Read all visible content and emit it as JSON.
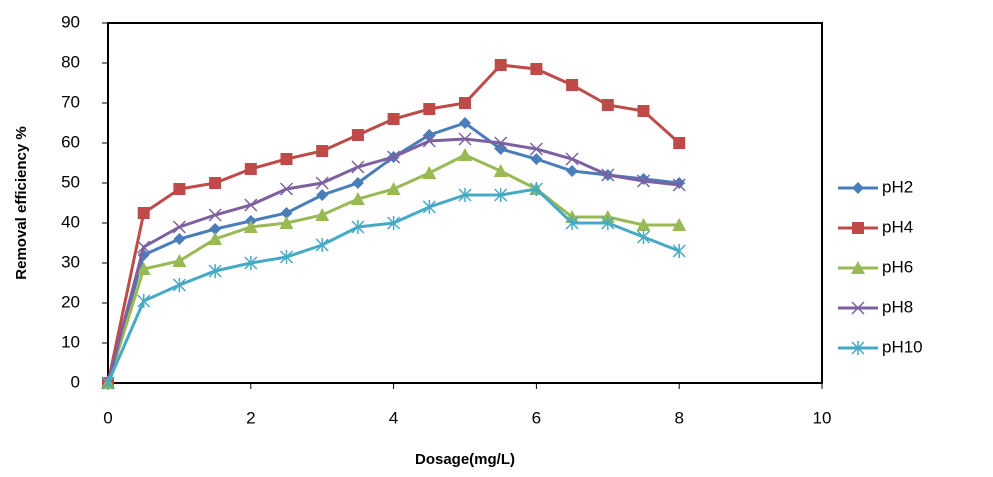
{
  "chart_data": {
    "type": "line",
    "x_label": "Dosage(mg/L)",
    "y_label": "Removal efficiency %",
    "x": [
      0,
      0.5,
      1,
      1.5,
      2,
      2.5,
      3,
      3.5,
      4,
      4.5,
      5,
      5.5,
      6,
      6.5,
      7,
      7.5,
      8
    ],
    "series": [
      {
        "name": "pH2",
        "color": "#4a7ebb",
        "marker": "diamond",
        "values": [
          0,
          32,
          36,
          38.5,
          40.5,
          42.5,
          47,
          50,
          56.5,
          62,
          65,
          58.5,
          56,
          53,
          52,
          51,
          50
        ]
      },
      {
        "name": "pH4",
        "color": "#be4b48",
        "marker": "square",
        "values": [
          0,
          42.5,
          48.5,
          50,
          53.5,
          56,
          58,
          62,
          66,
          68.5,
          70,
          79.5,
          78.5,
          74.5,
          69.5,
          68,
          60
        ]
      },
      {
        "name": "pH6",
        "color": "#98b954",
        "marker": "triangle",
        "values": [
          0,
          28.5,
          30.5,
          36,
          39,
          40,
          42,
          46,
          48.5,
          52.5,
          57,
          53,
          48.5,
          41.5,
          41.5,
          39.5,
          39.5
        ]
      },
      {
        "name": "pH8",
        "color": "#7d60a0",
        "marker": "x",
        "values": [
          0,
          34,
          39,
          42,
          44.5,
          48.5,
          50,
          54,
          56.5,
          60.5,
          61,
          60,
          58.5,
          56,
          52,
          50.5,
          49.5
        ]
      },
      {
        "name": "pH10",
        "color": "#46aac5",
        "marker": "star",
        "values": [
          0,
          20.5,
          24.5,
          28,
          30,
          31.5,
          34.5,
          39,
          40,
          44,
          47,
          47,
          48.5,
          40,
          40,
          36.5,
          33
        ]
      }
    ],
    "xlim": [
      0,
      10
    ],
    "xticks": [
      0,
      2,
      4,
      6,
      8,
      10
    ],
    "ylim": [
      0,
      90
    ],
    "yticks": [
      0,
      10,
      20,
      30,
      40,
      50,
      60,
      70,
      80,
      90
    ],
    "legend": "right"
  }
}
